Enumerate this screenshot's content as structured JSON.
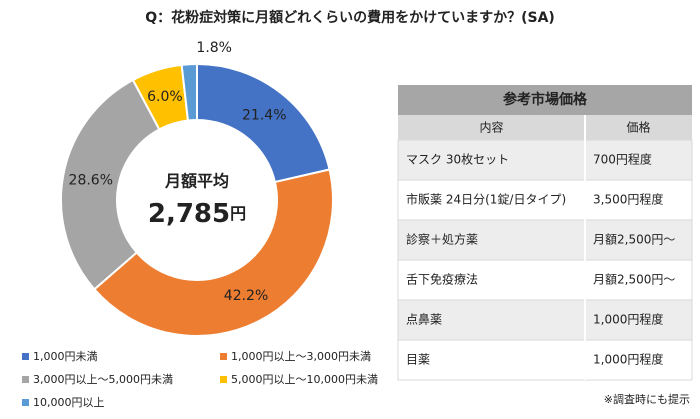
{
  "chart_data": {
    "type": "pie",
    "title": "Q：花粉症対策に月額どれくらいの費用をかけていますか？(SA)",
    "categories": [
      "1,000円未満",
      "1,000円以上～3,000円未満",
      "3,000円以上～5,000円未満",
      "5,000円以上～10,000円未満",
      "10,000円以上"
    ],
    "values": [
      21.4,
      42.2,
      28.6,
      6.0,
      1.8
    ],
    "value_labels": [
      "21.4%",
      "42.2%",
      "28.6%",
      "6.0%",
      "1.8%"
    ],
    "colors": [
      "#4472c4",
      "#ed7d31",
      "#a5a5a5",
      "#ffc000",
      "#5b9bd5"
    ],
    "donut": true,
    "center_label": "月額平均",
    "center_value": "2,785",
    "center_unit": "円"
  },
  "table": {
    "title": "参考市場価格",
    "header": [
      "内容",
      "価格"
    ],
    "rows": [
      [
        "マスク 30枚セット",
        "700円程度"
      ],
      [
        "市販薬 24日分(1錠/日タイプ)",
        "3,500円程度"
      ],
      [
        "診察＋処方薬",
        "月額2,500円～"
      ],
      [
        "舌下免疫療法",
        "月額2,500円～"
      ],
      [
        "点鼻薬",
        "1,000円程度"
      ],
      [
        "目薬",
        "1,000円程度"
      ]
    ],
    "note": "※調査時にも提示"
  }
}
